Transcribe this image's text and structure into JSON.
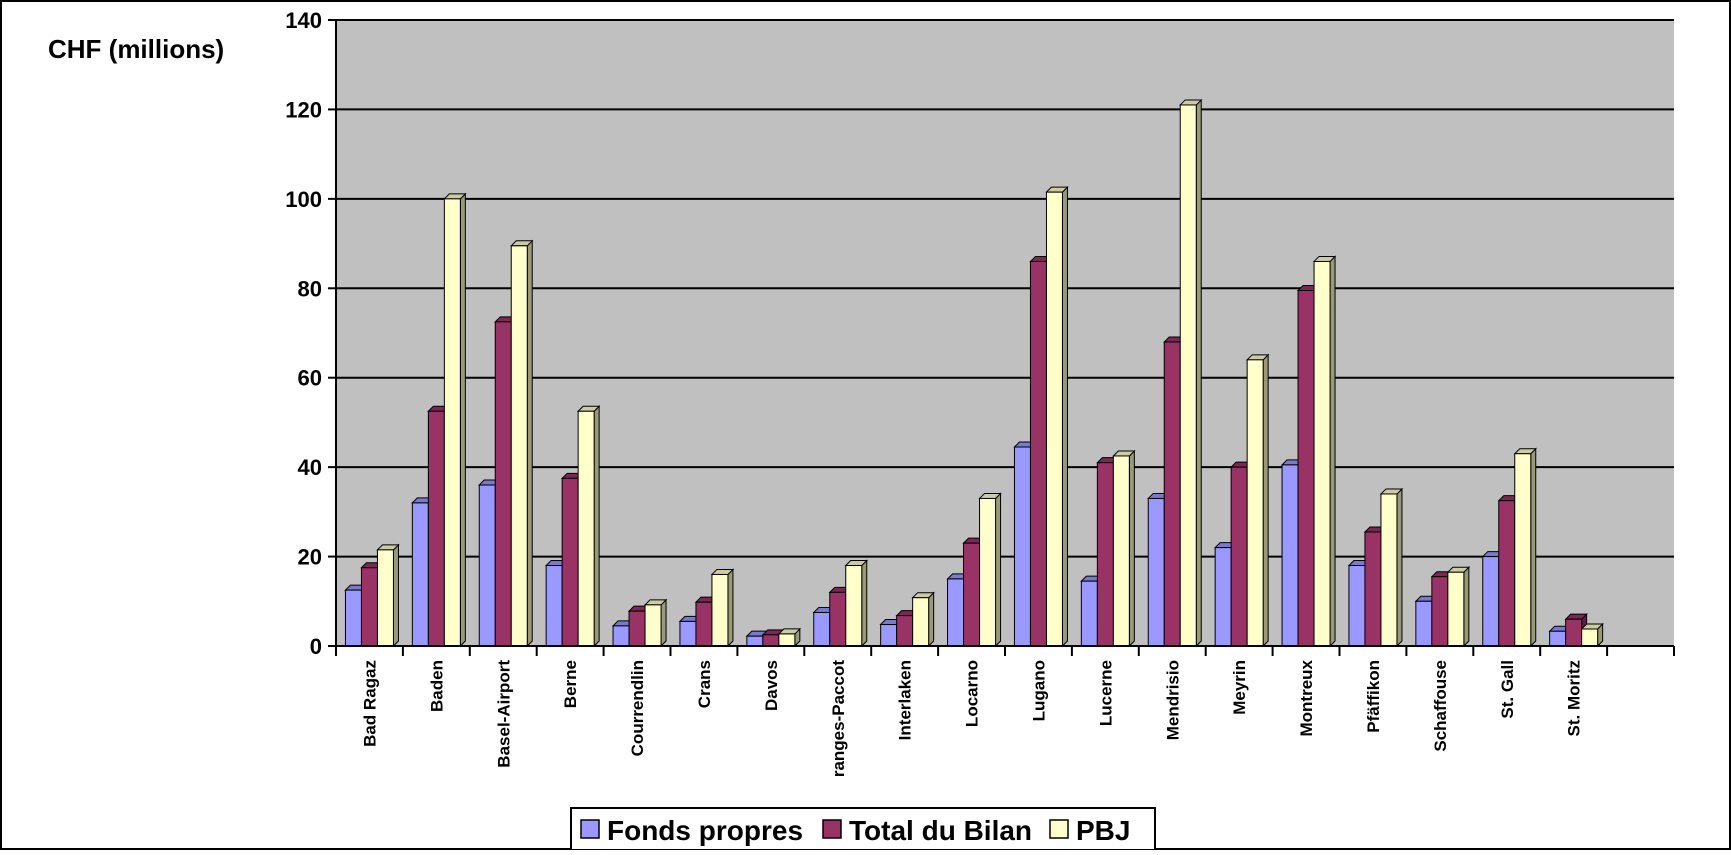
{
  "chart_data": {
    "type": "bar",
    "ylabel": "CHF (millions)",
    "ylim": [
      0,
      140
    ],
    "ytick_step": 20,
    "grid": true,
    "legend_position": "bottom",
    "categories": [
      "Bad Ragaz",
      "Baden",
      "Basel-Airport",
      "Berne",
      "Courrendlin",
      "Crans",
      "Davos",
      "ranges-Paccot",
      "Interlaken",
      "Locarno",
      "Lugano",
      "Lucerne",
      "Mendrisio",
      "Meyrin",
      "Montreux",
      "Pfäffikon",
      "Schaffouse",
      "St. Gall",
      "St. Moritz",
      ""
    ],
    "series": [
      {
        "name": "Fonds propres",
        "color": "#9999ff",
        "values": [
          12.5,
          32,
          36,
          18,
          4.5,
          5.5,
          2.2,
          7.5,
          4.8,
          15,
          44.5,
          14.5,
          33,
          22,
          40.5,
          18,
          10,
          20,
          3.3,
          null
        ]
      },
      {
        "name": "Total du Bilan",
        "color": "#993366",
        "values": [
          17.5,
          52.5,
          72.5,
          37.5,
          7.8,
          9.8,
          2.5,
          12,
          6.8,
          23,
          86,
          41,
          68,
          40,
          79.5,
          25.5,
          15.5,
          32.5,
          6,
          null
        ]
      },
      {
        "name": "PBJ",
        "color": "#ffffcc",
        "values": [
          21.5,
          100,
          89.5,
          52.5,
          9.2,
          16,
          2.7,
          18,
          10.8,
          33,
          101.5,
          42.5,
          121,
          64,
          86,
          34,
          16.5,
          43,
          3.8,
          null
        ]
      }
    ]
  }
}
